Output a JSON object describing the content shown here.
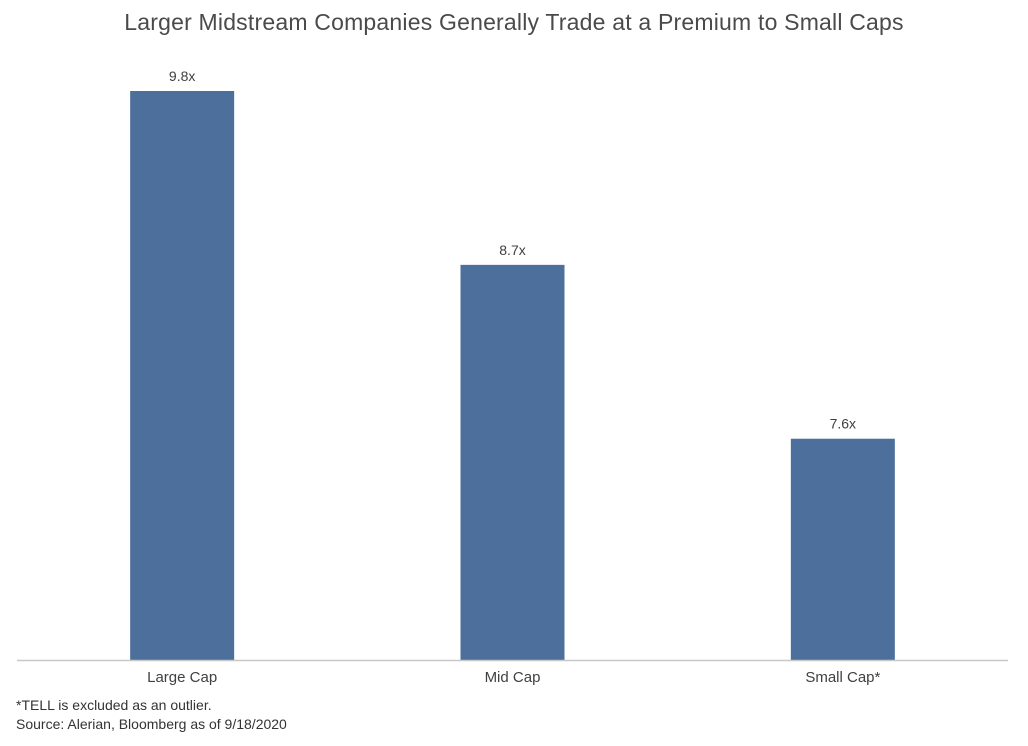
{
  "chart_data": {
    "type": "bar",
    "title": "Larger Midstream Companies Generally Trade at a Premium to Small Caps",
    "categories": [
      "Large Cap",
      "Mid Cap",
      "Small Cap*"
    ],
    "values": [
      9.8,
      8.7,
      7.6
    ],
    "data_labels": [
      "9.8x",
      "8.7x",
      "7.6x"
    ],
    "xlabel": "",
    "ylabel": "",
    "ylim": [
      6.2,
      9.8
    ],
    "grid": false,
    "legend": "none",
    "bar_color": "#4c6f9b",
    "axis_color": "#c8c8c8"
  },
  "footnotes": {
    "note": "*TELL is excluded as an outlier.",
    "source": "Source: Alerian, Bloomberg as of 9/18/2020"
  }
}
